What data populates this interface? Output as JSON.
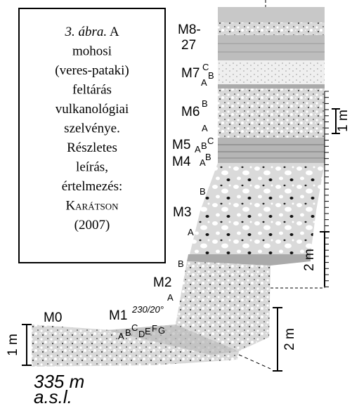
{
  "caption": {
    "figure": "3. ábra.",
    "lines": [
      "A",
      "mohosi",
      "(veres-pataki)",
      "feltárás",
      "vulkanológiai",
      "szelvénye.",
      "Részletes",
      "leírás,",
      "értelmezés:",
      "Karátson",
      "(2007)"
    ]
  },
  "units": {
    "m8": "M8-",
    "m8b": "27",
    "m7": "M7",
    "m7c": "C",
    "m7b": "B",
    "m7a": "A",
    "m6": "M6",
    "m6b": "B",
    "m6a": "A",
    "m5": "M5",
    "m5a": "A",
    "m5b": "B",
    "m5c": "C",
    "m4": "M4",
    "m4a": "A",
    "m4b": "B",
    "m3": "M3",
    "m3b": "B",
    "m3a": "A",
    "m2": "M2",
    "m2b": "B",
    "m2a": "A",
    "m1": "M1",
    "m1_letters": [
      "A",
      "B",
      "C",
      "D",
      "E",
      "F",
      "G"
    ],
    "m0": "M0"
  },
  "dip": "230/20°",
  "scales": {
    "right_1m": "1 m",
    "right_2m": "2 m",
    "lower_2m": "2 m",
    "left_1m": "1 m"
  },
  "elevation": {
    "value": "335 m",
    "unit": "a.s.l."
  }
}
